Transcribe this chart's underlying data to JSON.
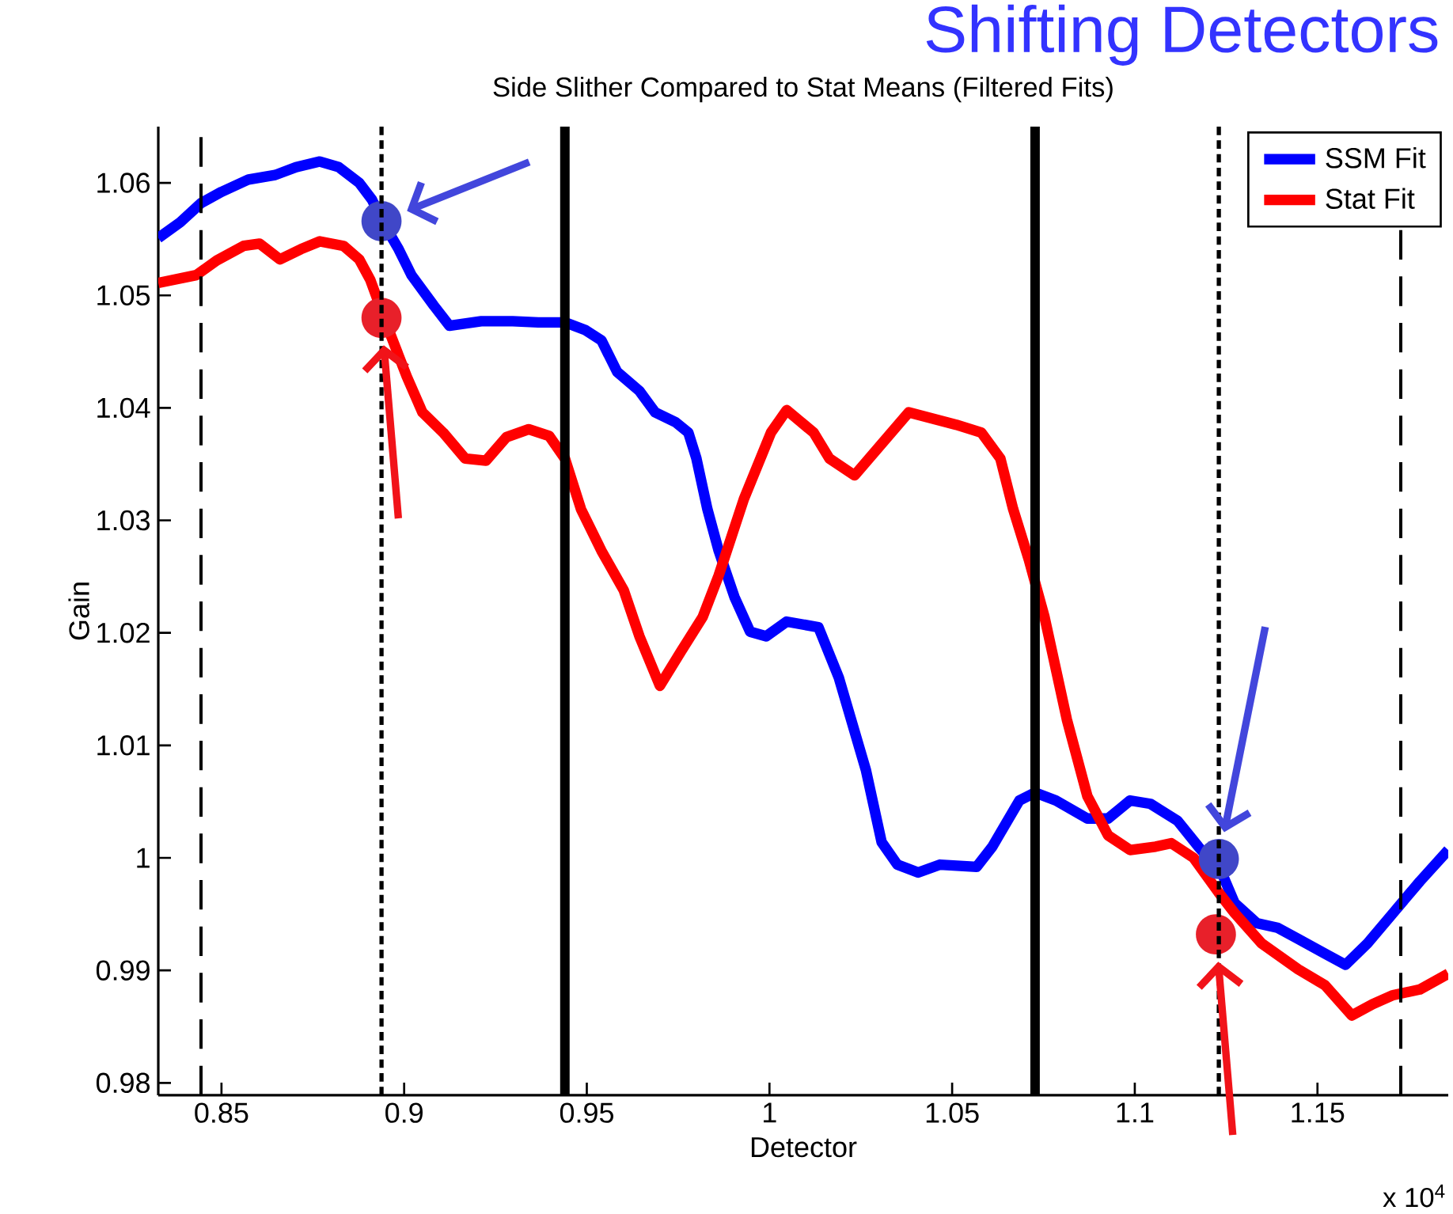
{
  "chart_data": {
    "type": "line",
    "title": "Side Slither Compared to Stat Means (Filtered Fits)",
    "xlabel": "Detector",
    "ylabel": "Gain",
    "annotations": [
      "Shifting Detectors",
      "x 10$^{4}$"
    ],
    "xlim": [
      0.8327,
      1.1858
    ],
    "ylim": [
      0.9789,
      1.065
    ],
    "xticks": [
      0.85,
      0.9,
      0.95,
      1,
      1.05,
      1.1,
      1.15
    ],
    "yticks": [
      0.98,
      0.99,
      1,
      1.01,
      1.02,
      1.03,
      1.04,
      1.05,
      1.06
    ],
    "legend": "top right",
    "series": [
      {
        "name": "SSM Fit",
        "color": "#0000ff",
        "x": [
          0.8327,
          0.8387,
          0.8444,
          0.85,
          0.8574,
          0.8647,
          0.8704,
          0.8769,
          0.8821,
          0.8877,
          0.8912,
          0.8942,
          0.8985,
          0.902,
          0.9081,
          0.9124,
          0.9211,
          0.9297,
          0.9367,
          0.944,
          0.9497,
          0.954,
          0.9583,
          0.9644,
          0.9687,
          0.9744,
          0.9778,
          0.98,
          0.983,
          0.9861,
          0.9904,
          0.9947,
          0.9991,
          1.0047,
          1.0134,
          1.019,
          1.0264,
          1.0307,
          1.035,
          1.0407,
          1.0467,
          1.0567,
          1.061,
          1.0684,
          1.0727,
          1.0784,
          1.087,
          1.0927,
          1.0987,
          1.1043,
          1.1117,
          1.1174,
          1.1239,
          1.1273,
          1.1334,
          1.139,
          1.1447,
          1.152,
          1.1577,
          1.1637,
          1.1707,
          1.178,
          1.1858
        ],
        "values": [
          1.0551,
          1.0565,
          1.0582,
          1.0592,
          1.0603,
          1.0607,
          1.0614,
          1.0619,
          1.0614,
          1.06,
          1.0585,
          1.0565,
          1.0541,
          1.0518,
          1.0491,
          1.0473,
          1.0477,
          1.0477,
          1.0476,
          1.0476,
          1.0469,
          1.046,
          1.0432,
          1.0415,
          1.0396,
          1.0387,
          1.0378,
          1.0355,
          1.031,
          1.0273,
          1.0232,
          1.0201,
          1.0197,
          1.021,
          1.0205,
          1.016,
          1.0078,
          1.0014,
          0.9994,
          0.9987,
          0.9994,
          0.9992,
          1.001,
          1.0051,
          1.0058,
          1.0051,
          1.0035,
          1.0035,
          1.0051,
          1.0048,
          1.0033,
          1.001,
          0.9986,
          0.996,
          0.9942,
          0.9938,
          0.9928,
          0.9915,
          0.9905,
          0.9924,
          0.9951,
          0.9979,
          1.0007
        ]
      },
      {
        "name": "Stat Fit",
        "color": "#ff0000",
        "x": [
          0.8327,
          0.8431,
          0.8487,
          0.8561,
          0.8604,
          0.866,
          0.8717,
          0.8769,
          0.8834,
          0.8877,
          0.8907,
          0.8933,
          0.8964,
          0.9007,
          0.905,
          0.9107,
          0.9167,
          0.9224,
          0.928,
          0.9341,
          0.9397,
          0.944,
          0.9484,
          0.954,
          0.9601,
          0.9644,
          0.97,
          0.9757,
          0.9817,
          0.9861,
          0.993,
          1.0004,
          1.0047,
          1.0121,
          1.0164,
          1.0233,
          1.0307,
          1.0381,
          1.0511,
          1.058,
          1.0632,
          1.0667,
          1.071,
          1.0753,
          1.0814,
          1.087,
          1.0927,
          1.0987,
          1.1057,
          1.11,
          1.1161,
          1.123,
          1.1273,
          1.1347,
          1.1447,
          1.152,
          1.1594,
          1.1651,
          1.1707,
          1.178,
          1.1858
        ],
        "values": [
          1.0511,
          1.0518,
          1.0531,
          1.0544,
          1.0546,
          1.0532,
          1.0541,
          1.0548,
          1.0544,
          1.0532,
          1.0514,
          1.0491,
          1.0464,
          1.0428,
          1.0396,
          1.0378,
          1.0355,
          1.0353,
          1.0374,
          1.0381,
          1.0375,
          1.0355,
          1.031,
          1.0273,
          1.0238,
          1.0197,
          1.0153,
          1.0183,
          1.0214,
          1.0251,
          1.0319,
          1.0378,
          1.0398,
          1.0378,
          1.0355,
          1.034,
          1.0368,
          1.0396,
          1.0385,
          1.0378,
          1.0355,
          1.031,
          1.0265,
          1.0214,
          1.0123,
          1.0055,
          1.002,
          1.0007,
          1.001,
          1.0013,
          1.0,
          0.9969,
          0.9951,
          0.9924,
          0.9901,
          0.9887,
          0.986,
          0.987,
          0.9878,
          0.9883,
          0.9897
        ]
      },
      {
        "color": "#4047c8",
        "type": "scatter",
        "marker": "circle",
        "x": [
          0.8938,
          1.123
        ],
        "values": [
          1.0566,
          0.9999
        ]
      },
      {
        "color": "#e8202a",
        "type": "scatter",
        "marker": "circle",
        "x": [
          0.8938,
          1.1222
        ],
        "values": [
          1.048,
          0.9932
        ]
      }
    ],
    "ref_lines": [
      {
        "axis": "x",
        "value": 0.8444,
        "line_style": "dashed",
        "color": "#000000"
      },
      {
        "axis": "x",
        "value": 0.8938,
        "line_style": "dotted",
        "color": "#000000"
      },
      {
        "axis": "x",
        "value": 0.944,
        "line_style": "solid",
        "color": "#000000"
      },
      {
        "axis": "x",
        "value": 1.0727,
        "line_style": "solid",
        "color": "#000000"
      },
      {
        "axis": "x",
        "value": 1.123,
        "line_style": "dotted",
        "color": "#000000"
      },
      {
        "axis": "x",
        "value": 1.1728,
        "line_style": "dashed",
        "color": "#000000"
      }
    ]
  }
}
